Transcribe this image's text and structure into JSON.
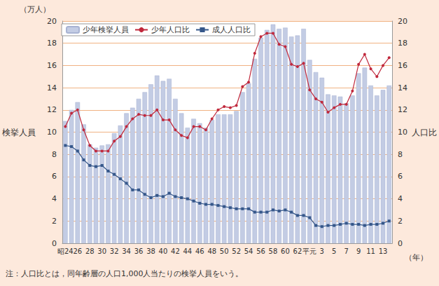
{
  "chart_data": {
    "type": "bar",
    "y_unit": "（万人）",
    "ylabel": "検挙人員",
    "y2label": "人口比",
    "x_unit": "（年）",
    "note": "注：人口比とは，同年齢層の人口1,000人当たりの検挙人員をいう。",
    "categories": [
      "昭24",
      null,
      "26",
      null,
      "28",
      null,
      "30",
      null,
      "32",
      null,
      "34",
      null,
      "36",
      null,
      "38",
      null,
      "40",
      null,
      "42",
      null,
      "44",
      null,
      "46",
      null,
      "48",
      null,
      "50",
      null,
      "52",
      null,
      "54",
      null,
      "56",
      null,
      "58",
      null,
      "60",
      null,
      "62",
      null,
      "平元",
      null,
      "3",
      null,
      "5",
      null,
      "7",
      null,
      "9",
      null,
      "11",
      null,
      "13",
      null
    ],
    "series": [
      {
        "name": "少年検挙人員",
        "type": "bar",
        "color": "#c3cce4",
        "values": [
          11.0,
          12.0,
          12.7,
          10.7,
          8.9,
          8.6,
          8.8,
          8.9,
          9.9,
          10.6,
          11.7,
          12.2,
          13.0,
          13.6,
          14.3,
          15.1,
          14.6,
          14.8,
          13.0,
          11.7,
          10.4,
          11.2,
          10.8,
          10.4,
          11.1,
          11.6,
          11.6,
          11.6,
          11.9,
          13.6,
          14.4,
          16.6,
          18.5,
          19.2,
          19.7,
          19.3,
          19.4,
          18.6,
          18.7,
          19.3,
          16.5,
          15.4,
          14.9,
          13.4,
          13.3,
          13.2,
          12.6,
          13.3,
          15.3,
          15.8,
          14.2,
          13.3,
          13.8,
          14.2
        ]
      },
      {
        "name": "少年人口比",
        "type": "line",
        "axis": "y2",
        "color": "#c0283c",
        "marker": "circle",
        "values": [
          10.5,
          11.7,
          12.0,
          10.2,
          8.8,
          8.3,
          8.3,
          8.3,
          9.2,
          9.6,
          10.5,
          11.2,
          11.6,
          11.5,
          11.5,
          12.0,
          11.1,
          11.1,
          10.2,
          9.7,
          9.5,
          10.5,
          10.5,
          10.2,
          11.2,
          12.0,
          12.3,
          12.2,
          12.4,
          14.1,
          14.5,
          17.1,
          18.6,
          18.9,
          18.9,
          17.9,
          17.7,
          16.1,
          15.9,
          16.2,
          13.8,
          13.0,
          12.7,
          11.8,
          12.2,
          12.5,
          12.5,
          13.7,
          16.1,
          17.0,
          15.7,
          15.0,
          16.0,
          16.7
        ]
      },
      {
        "name": "成人人口比",
        "type": "line",
        "axis": "y2",
        "color": "#35578a",
        "marker": "square",
        "values": [
          8.8,
          8.7,
          8.3,
          7.5,
          7.0,
          6.9,
          7.0,
          6.5,
          6.2,
          5.8,
          5.4,
          4.8,
          4.8,
          4.4,
          4.1,
          4.3,
          4.2,
          4.5,
          4.2,
          4.1,
          4.0,
          3.8,
          3.6,
          3.5,
          3.5,
          3.4,
          3.3,
          3.2,
          3.1,
          3.1,
          3.1,
          2.8,
          2.8,
          2.8,
          3.0,
          2.9,
          3.0,
          2.8,
          2.5,
          2.5,
          2.3,
          1.6,
          1.5,
          1.6,
          1.6,
          1.7,
          1.8,
          1.7,
          1.7,
          1.6,
          1.7,
          1.7,
          1.8,
          2.0
        ]
      }
    ],
    "ylim": [
      0,
      20
    ],
    "yticks": [
      0,
      2,
      4,
      6,
      8,
      10,
      12,
      14,
      16,
      18,
      20
    ],
    "y2lim": [
      0,
      20
    ],
    "y2ticks": [
      0,
      2,
      4,
      6,
      8,
      10,
      12,
      14,
      16,
      18,
      20
    ],
    "grid": true,
    "legend": "upper left"
  }
}
